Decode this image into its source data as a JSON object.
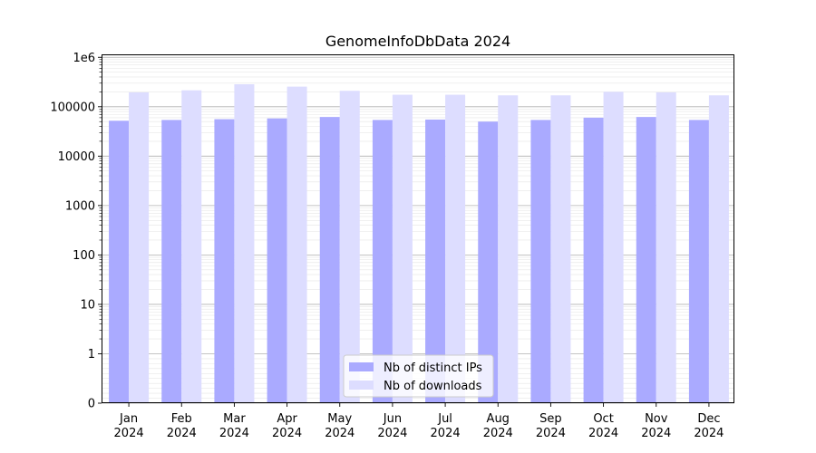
{
  "chart_data": {
    "type": "bar",
    "title": "GenomeInfoDbData 2024",
    "xlabel": "",
    "ylabel": "",
    "yscale": "symlog",
    "ylim": [
      0,
      1000000
    ],
    "y_ticks": [
      0,
      1,
      10,
      100,
      1000,
      10000,
      100000,
      1000000
    ],
    "y_tick_labels": [
      "0",
      "1",
      "10",
      "100",
      "1000",
      "10000",
      "100000",
      "1e6"
    ],
    "grid": true,
    "legend_position": "bottom-center",
    "categories": [
      {
        "month": "Jan",
        "year": "2024"
      },
      {
        "month": "Feb",
        "year": "2024"
      },
      {
        "month": "Mar",
        "year": "2024"
      },
      {
        "month": "Apr",
        "year": "2024"
      },
      {
        "month": "May",
        "year": "2024"
      },
      {
        "month": "Jun",
        "year": "2024"
      },
      {
        "month": "Jul",
        "year": "2024"
      },
      {
        "month": "Aug",
        "year": "2024"
      },
      {
        "month": "Sep",
        "year": "2024"
      },
      {
        "month": "Oct",
        "year": "2024"
      },
      {
        "month": "Nov",
        "year": "2024"
      },
      {
        "month": "Dec",
        "year": "2024"
      }
    ],
    "series": [
      {
        "name": "Nb of distinct IPs",
        "color": "#aaaaff",
        "values": [
          52000,
          54000,
          56000,
          58000,
          62000,
          54000,
          55000,
          50000,
          54000,
          60000,
          62000,
          54000
        ]
      },
      {
        "name": "Nb of downloads",
        "color": "#ddddff",
        "values": [
          195000,
          215000,
          285000,
          255000,
          210000,
          175000,
          175000,
          170000,
          170000,
          200000,
          195000,
          170000
        ]
      }
    ]
  }
}
